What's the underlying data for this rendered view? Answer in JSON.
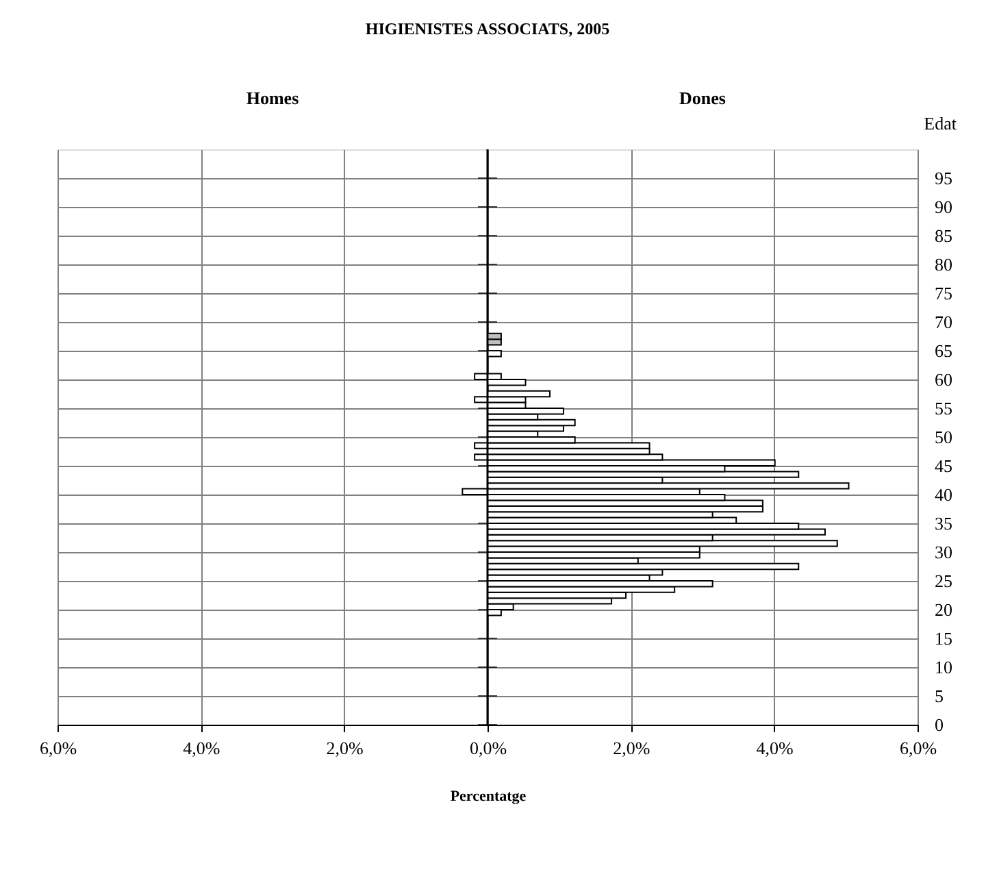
{
  "chart_data": {
    "type": "bar",
    "orientation": "horizontal",
    "title": "HIGIENISTES ASSOCIATS, 2005",
    "xlabel": "Percentatge",
    "ylabel": "Edat",
    "x": [
      19,
      20,
      21,
      22,
      23,
      24,
      25,
      26,
      27,
      28,
      29,
      30,
      31,
      32,
      33,
      34,
      35,
      36,
      37,
      38,
      39,
      40,
      41,
      42,
      43,
      44,
      45,
      46,
      47,
      48,
      49,
      50,
      51,
      52,
      53,
      54,
      55,
      56,
      57,
      58,
      59,
      60,
      61,
      62,
      63,
      64,
      65,
      66,
      67
    ],
    "annotations": [
      "Homes",
      "Dones"
    ],
    "series": [
      {
        "color": "#ffffff",
        "values": [
          null,
          null,
          null,
          null,
          null,
          null,
          null,
          null,
          null,
          null,
          null,
          null,
          null,
          null,
          null,
          null,
          null,
          null,
          null,
          null,
          null,
          -0.35,
          null,
          null,
          null,
          null,
          null,
          -0.18,
          null,
          -0.18,
          null,
          null,
          null,
          null,
          null,
          null,
          null,
          -0.18,
          null,
          null,
          null,
          -0.18,
          null,
          null,
          null,
          null,
          null,
          null,
          null
        ]
      },
      {
        "color": "#ffffff",
        "colors": [
          "#ffffff",
          "#ffffff",
          "#ffffff",
          "#ffffff",
          "#ffffff",
          "#ffffff",
          "#ffffff",
          "#ffffff",
          "#ffffff",
          "#ffffff",
          "#ffffff",
          "#ffffff",
          "#ffffff",
          "#ffffff",
          "#ffffff",
          "#ffffff",
          "#ffffff",
          "#ffffff",
          "#ffffff",
          "#ffffff",
          "#ffffff",
          "#ffffff",
          "#ffffff",
          "#ffffff",
          "#ffffff",
          "#ffffff",
          "#ffffff",
          "#ffffff",
          "#ffffff",
          "#ffffff",
          "#ffffff",
          "#ffffff",
          "#ffffff",
          "#ffffff",
          "#ffffff",
          "#ffffff",
          "#ffffff",
          "#ffffff",
          "#ffffff",
          "#ffffff",
          "#ffffff",
          "#ffffff",
          "#ffffff",
          "#ffffff",
          "#ffffff",
          "#ffffff",
          "#ffffff",
          "#c0c0c0",
          "#c0c0c0"
        ],
        "values": [
          0.19,
          0.36,
          1.73,
          1.93,
          2.61,
          3.14,
          2.26,
          2.44,
          4.34,
          2.1,
          2.96,
          2.96,
          4.88,
          3.14,
          4.71,
          4.34,
          3.47,
          3.14,
          3.84,
          3.84,
          3.31,
          2.96,
          5.04,
          2.44,
          4.34,
          3.31,
          4.01,
          2.44,
          2.26,
          2.26,
          1.22,
          0.7,
          1.06,
          1.22,
          0.7,
          1.06,
          0.53,
          0.53,
          0.87,
          null,
          0.53,
          0.19,
          null,
          null,
          null,
          0.19,
          null,
          0.19,
          0.19
        ]
      }
    ],
    "xlim": [
      -6,
      6
    ],
    "xticks": [
      {
        "value": -6,
        "label": "6,0%"
      },
      {
        "value": -4,
        "label": "4,0%"
      },
      {
        "value": -2,
        "label": "2,0%"
      },
      {
        "value": 0,
        "label": "0,0%"
      },
      {
        "value": 2,
        "label": "2,0%"
      },
      {
        "value": 4,
        "label": "4,0%"
      },
      {
        "value": 6,
        "label": "6,0%"
      }
    ],
    "ylim": [
      0,
      100
    ],
    "yticks": [
      0,
      5,
      10,
      15,
      20,
      25,
      30,
      35,
      40,
      45,
      50,
      55,
      60,
      65,
      70,
      75,
      80,
      85,
      90,
      95
    ],
    "grid": true
  }
}
